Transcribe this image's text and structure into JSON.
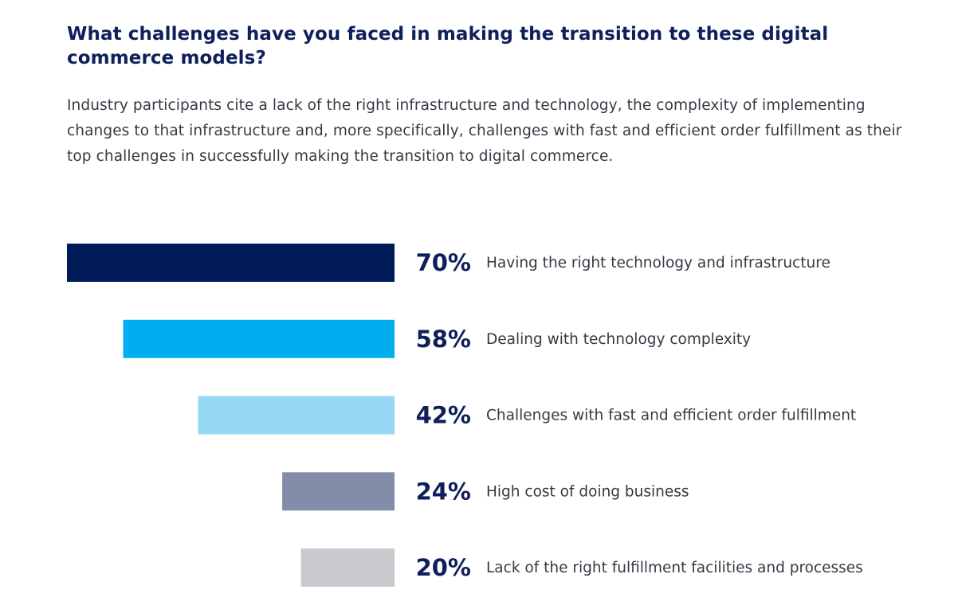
{
  "title": "What challenges have you faced in making the transition to these digital commerce models?",
  "intro": "Industry participants cite a lack of the right infrastructure and technology, the complexity of implementing changes to that infrastructure and, more specifically, challenges with fast and efficient order fulfillment as their top challenges in successfully making the transition to digital commerce.",
  "chart_data": {
    "type": "bar",
    "orientation": "horizontal",
    "bar_alignment": "right",
    "grid": false,
    "legend": "none",
    "xlim": [
      0,
      100
    ],
    "categories": [
      "Having the right technology and infrastructure",
      "Dealing with technology complexity",
      "Challenges with fast and efficient order fulfillment",
      "High cost of doing business",
      "Lack of the right fulfillment facilities and processes"
    ],
    "values": [
      70,
      58,
      42,
      24,
      20
    ],
    "value_labels": [
      "70%",
      "58%",
      "42%",
      "24%",
      "20%"
    ],
    "colors": [
      "#001a57",
      "#00aeef",
      "#95d9f5",
      "#838ca8",
      "#c8c9cc"
    ]
  }
}
